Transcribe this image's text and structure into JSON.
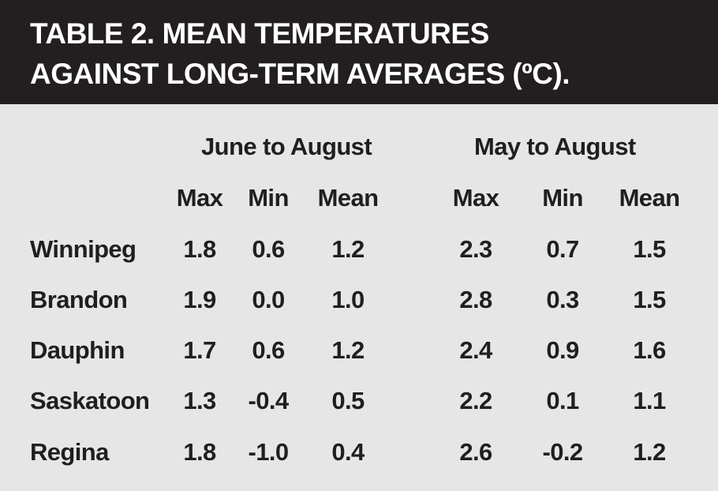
{
  "title": {
    "line1": "TABLE 2. MEAN TEMPERATURES",
    "line2": "AGAINST LONG-TERM AVERAGES (ºC)."
  },
  "groups": [
    "June to August",
    "May to August"
  ],
  "columns": [
    "Max",
    "Min",
    "Mean",
    "Max",
    "Min",
    "Mean"
  ],
  "rows": [
    {
      "label": "Winnipeg",
      "values": [
        "1.8",
        "0.6",
        "1.2",
        "2.3",
        "0.7",
        "1.5"
      ]
    },
    {
      "label": "Brandon",
      "values": [
        "1.9",
        "0.0",
        "1.0",
        "2.8",
        "0.3",
        "1.5"
      ]
    },
    {
      "label": "Dauphin",
      "values": [
        "1.7",
        "0.6",
        "1.2",
        "2.4",
        "0.9",
        "1.6"
      ]
    },
    {
      "label": "Saskatoon",
      "values": [
        "1.3",
        "-0.4",
        "0.5",
        "2.2",
        "0.1",
        "1.1"
      ]
    },
    {
      "label": "Regina",
      "values": [
        "1.8",
        "-1.0",
        "0.4",
        "2.6",
        "-0.2",
        "1.2"
      ]
    }
  ]
}
